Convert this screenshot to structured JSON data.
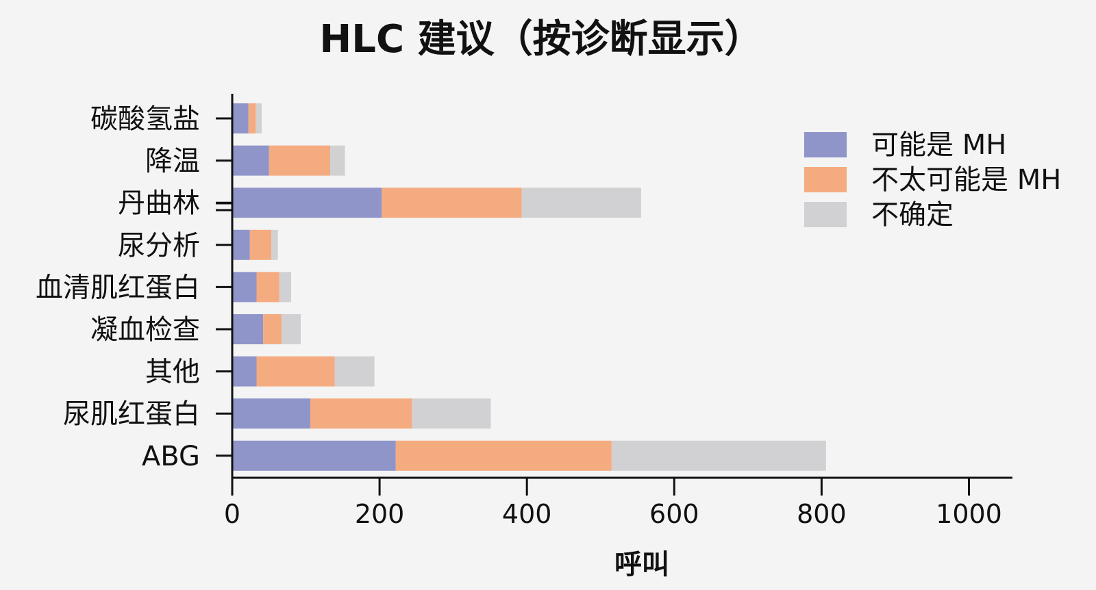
{
  "chart_data": {
    "type": "bar",
    "orientation": "horizontal",
    "stacked": true,
    "title": "HLC 建议（按诊断显示）",
    "xlabel": "呼叫",
    "ylabel": "",
    "xlim": [
      0,
      1000
    ],
    "xticks": [
      "0",
      "200",
      "400",
      "600",
      "800",
      "1000"
    ],
    "categories": [
      "碳酸氢盐",
      "降温",
      "丹曲林",
      "尿分析",
      "血清肌红蛋白",
      "凝血检查",
      "其他",
      "尿肌红蛋白",
      "ABG"
    ],
    "series": [
      {
        "name": "可能是 MH",
        "color": "#8f95c9",
        "values": [
          22,
          50,
          203,
          24,
          33,
          42,
          33,
          106,
          222
        ]
      },
      {
        "name": "不太可能是 MH",
        "color": "#f5ab80",
        "values": [
          10,
          83,
          190,
          29,
          31,
          25,
          106,
          138,
          293
        ]
      },
      {
        "name": "不确定",
        "color": "#d1d1d3",
        "values": [
          8,
          20,
          162,
          9,
          16,
          26,
          54,
          107,
          291
        ]
      }
    ],
    "legend_position": "top-right",
    "grid": false
  }
}
